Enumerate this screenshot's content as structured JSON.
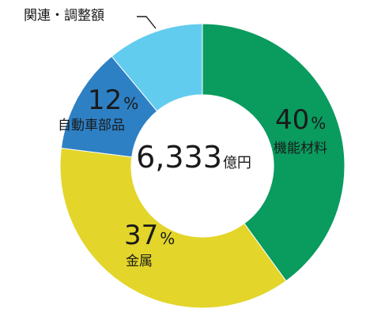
{
  "chart_data": {
    "type": "pie",
    "style": "donut",
    "center_label": {
      "value": "6,333",
      "unit": "億円"
    },
    "slices": [
      {
        "name": "機能材料",
        "value": 40,
        "value_label": "40",
        "unit": "%",
        "color": "#0a9b5e"
      },
      {
        "name": "金属",
        "value": 37,
        "value_label": "37",
        "unit": "%",
        "color": "#e3d52a"
      },
      {
        "name": "自動車部品",
        "value": 12,
        "value_label": "12",
        "unit": "%",
        "color": "#2e80c4"
      },
      {
        "name": "関連・調整額",
        "value": 11,
        "value_label": "",
        "unit": "",
        "color": "#62ccef"
      }
    ]
  }
}
